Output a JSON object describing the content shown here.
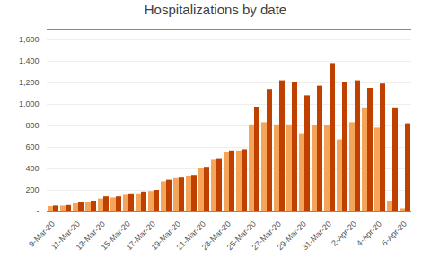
{
  "chart_data": {
    "type": "bar",
    "title": "Hospitalizations by date",
    "categories": [
      "9-Mar-20",
      null,
      "11-Mar-20",
      null,
      "13-Mar-20",
      null,
      "15-Mar-20",
      null,
      "17-Mar-20",
      null,
      "19-Mar-20",
      null,
      "21-Mar-20",
      null,
      "23-Mar-20",
      null,
      "25-Mar-20",
      null,
      "27-Mar-20",
      null,
      "29-Mar-20",
      null,
      "31-Mar-20",
      null,
      "2-Apr-20",
      null,
      "4-Apr-20",
      null,
      "6-Apr-20"
    ],
    "series": [
      {
        "color": "#f5a55a",
        "values": [
          50,
          55,
          75,
          90,
          120,
          130,
          155,
          160,
          190,
          280,
          310,
          330,
          400,
          480,
          550,
          560,
          810,
          830,
          810,
          810,
          720,
          800,
          800,
          670,
          830,
          960,
          780,
          100,
          30
        ]
      },
      {
        "color": "#c04000",
        "values": [
          55,
          60,
          90,
          100,
          140,
          140,
          160,
          185,
          200,
          295,
          315,
          340,
          415,
          495,
          560,
          580,
          970,
          1140,
          1220,
          1200,
          1080,
          1170,
          1380,
          1200,
          1220,
          1150,
          1190,
          960,
          820
        ]
      }
    ],
    "ylim": [
      0,
      1700
    ],
    "yticks": [
      {
        "value": 0,
        "label": "-"
      },
      200,
      400,
      600,
      800,
      {
        "value": 1000,
        "label": "1,000"
      },
      {
        "value": 1200,
        "label": "1,200"
      },
      {
        "value": 1400,
        "label": "1,400"
      },
      {
        "value": 1600,
        "label": "1,600"
      }
    ],
    "grid": true
  }
}
